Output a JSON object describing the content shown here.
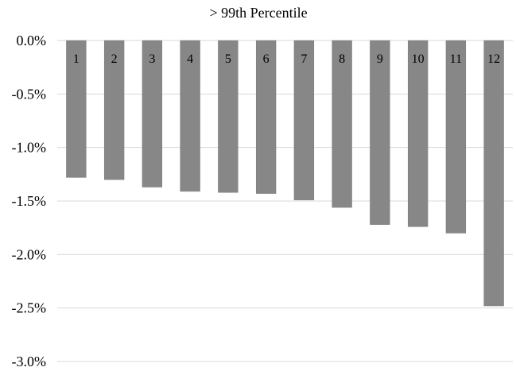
{
  "chart_data": {
    "type": "bar",
    "title": "> 99th Percentile",
    "xlabel": "",
    "ylabel": "",
    "categories": [
      "1",
      "2",
      "3",
      "4",
      "5",
      "6",
      "7",
      "8",
      "9",
      "10",
      "11",
      "12"
    ],
    "values": [
      -1.28,
      -1.3,
      -1.37,
      -1.41,
      -1.42,
      -1.43,
      -1.49,
      -1.56,
      -1.72,
      -1.74,
      -1.8,
      -2.48
    ],
    "ylim": [
      -3.0,
      0.0
    ],
    "yticks": [
      0.0,
      -0.5,
      -1.0,
      -1.5,
      -2.0,
      -2.5,
      -3.0
    ],
    "ytick_labels": [
      "0.0%",
      "-0.5%",
      "-1.0%",
      "-1.5%",
      "-2.0%",
      "-2.5%",
      "-3.0%"
    ],
    "value_unit": "%",
    "grid": true,
    "legend": "none",
    "colors": {
      "bar": "#878787",
      "bar_edge": "#7a7a7a",
      "grid": "#d9d9d9",
      "text": "#000000"
    }
  }
}
